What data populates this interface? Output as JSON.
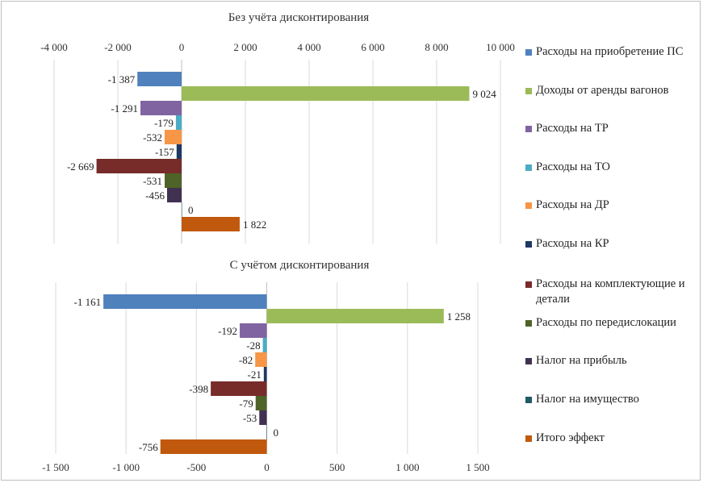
{
  "chart_data": [
    {
      "type": "bar",
      "orientation": "horizontal",
      "title": "Без учёта дисконтирования",
      "xlim": [
        -4000,
        10000
      ],
      "xticks": [
        -4000,
        -2000,
        0,
        2000,
        4000,
        6000,
        8000,
        10000
      ],
      "xtick_labels": [
        "-4 000",
        "-2 000",
        "0",
        "2 000",
        "4 000",
        "6 000",
        "8 000",
        "10 000"
      ],
      "axis_position": "top",
      "grid": true,
      "series": [
        {
          "name": "Расходы на приобретение ПС",
          "value": -1387,
          "label": "-1 387"
        },
        {
          "name": "Доходы от аренды вагонов",
          "value": 9024,
          "label": "9 024"
        },
        {
          "name": "Расходы на ТР",
          "value": -1291,
          "label": "-1 291"
        },
        {
          "name": "Расходы на ТО",
          "value": -179,
          "label": "-179"
        },
        {
          "name": "Расходы на ДР",
          "value": -532,
          "label": "-532"
        },
        {
          "name": "Расходы на КР",
          "value": -157,
          "label": "-157"
        },
        {
          "name": "Расходы на комплектующие и детали",
          "value": -2669,
          "label": "-2 669"
        },
        {
          "name": "Расходы по передислокации",
          "value": -531,
          "label": "-531"
        },
        {
          "name": "Налог на прибыль",
          "value": -456,
          "label": "-456"
        },
        {
          "name": "Налог на имущество",
          "value": 0,
          "label": "0"
        },
        {
          "name": "Итого эффект",
          "value": 1822,
          "label": "1 822"
        }
      ]
    },
    {
      "type": "bar",
      "orientation": "horizontal",
      "title": "С учётом дисконтирования",
      "xlim": [
        -1500,
        1500
      ],
      "xticks": [
        -1500,
        -1000,
        -500,
        0,
        500,
        1000,
        1500
      ],
      "xtick_labels": [
        "-1 500",
        "-1 000",
        "-500",
        "0",
        "500",
        "1 000",
        "1 500"
      ],
      "axis_position": "bottom",
      "grid": true,
      "series": [
        {
          "name": "Расходы на приобретение ПС",
          "value": -1161,
          "label": "-1 161"
        },
        {
          "name": "Доходы от аренды вагонов",
          "value": 1258,
          "label": "1 258"
        },
        {
          "name": "Расходы на ТР",
          "value": -192,
          "label": "-192"
        },
        {
          "name": "Расходы на ТО",
          "value": -28,
          "label": "-28"
        },
        {
          "name": "Расходы на ДР",
          "value": -82,
          "label": "-82"
        },
        {
          "name": "Расходы на КР",
          "value": -21,
          "label": "-21"
        },
        {
          "name": "Расходы на комплектующие и детали",
          "value": -398,
          "label": "-398"
        },
        {
          "name": "Расходы по передислокации",
          "value": -79,
          "label": "-79"
        },
        {
          "name": "Налог на прибыль",
          "value": -53,
          "label": "-53"
        },
        {
          "name": "Налог на имущество",
          "value": 0,
          "label": "0"
        },
        {
          "name": "Итого эффект",
          "value": -756,
          "label": "-756"
        }
      ]
    }
  ],
  "legend": {
    "placement": "right",
    "items": [
      {
        "label": "Расходы на приобретение ПС",
        "color": "#4F81BD"
      },
      {
        "label": "Доходы от аренды вагонов",
        "color": "#9BBB59"
      },
      {
        "label": "Расходы на ТР",
        "color": "#8064A2"
      },
      {
        "label": "Расходы на ТО",
        "color": "#4BACC6"
      },
      {
        "label": "Расходы на ДР",
        "color": "#F79646"
      },
      {
        "label": "Расходы на КР",
        "color": "#1F3864"
      },
      {
        "label": "Расходы на комплектующие и детали",
        "color": "#772C2A"
      },
      {
        "label": "Расходы по передислокации",
        "color": "#4F6228"
      },
      {
        "label": "Налог на прибыль",
        "color": "#403151"
      },
      {
        "label": "Налог на имущество",
        "color": "#215968"
      },
      {
        "label": "Итого эффект",
        "color": "#C0590E"
      }
    ]
  }
}
